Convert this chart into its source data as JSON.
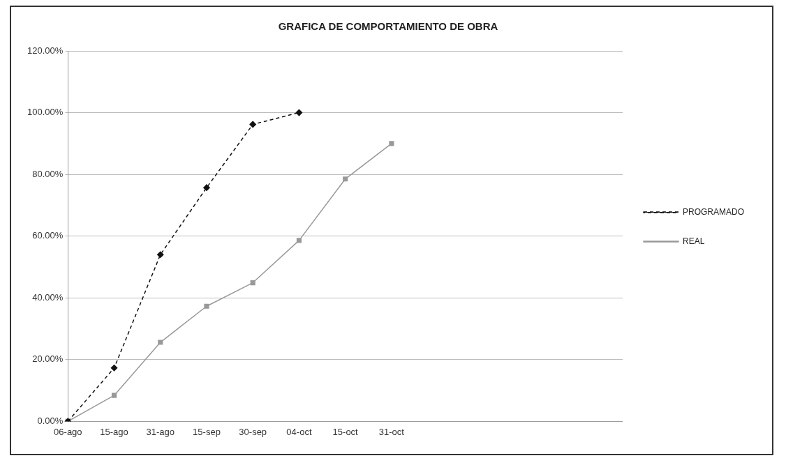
{
  "chart_data": {
    "type": "line",
    "title": "GRAFICA DE COMPORTAMIENTO DE OBRA",
    "categories": [
      "06-ago",
      "15-ago",
      "31-ago",
      "15-sep",
      "30-sep",
      "04-oct",
      "15-oct",
      "31-oct",
      null,
      null,
      null,
      null,
      null
    ],
    "series": [
      {
        "name": "PROGRAMADO",
        "color": "#111111",
        "marker": "diamond",
        "line_style": "dashed",
        "values": [
          0,
          17.3,
          54.0,
          75.7,
          96.2,
          100,
          null,
          null,
          null,
          null,
          null,
          null,
          null
        ]
      },
      {
        "name": "REAL",
        "color": "#999999",
        "marker": "square",
        "line_style": "solid",
        "values": [
          0,
          8.4,
          25.6,
          37.3,
          44.9,
          58.6,
          78.5,
          90.0,
          null,
          null,
          null,
          null,
          null
        ]
      }
    ],
    "ylim": [
      0,
      120
    ],
    "yticks": [
      {
        "value": 0,
        "label": "0.00%"
      },
      {
        "value": 20,
        "label": "20.00%"
      },
      {
        "value": 40,
        "label": "40.00%"
      },
      {
        "value": 60,
        "label": "60.00%"
      },
      {
        "value": 80,
        "label": "80.00%"
      },
      {
        "value": 100,
        "label": "100.00%"
      },
      {
        "value": 120,
        "label": "120.00%"
      }
    ],
    "grid": "y",
    "legend": "right"
  }
}
